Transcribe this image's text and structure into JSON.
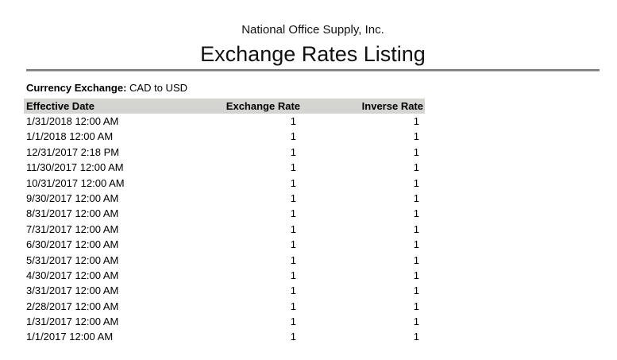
{
  "report": {
    "company": "National Office Supply, Inc.",
    "title": "Exchange Rates Listing",
    "filter": {
      "label": "Currency Exchange:",
      "value": "CAD to USD"
    },
    "table": {
      "columns": [
        "Effective Date",
        "Exchange Rate",
        "Inverse Rate"
      ],
      "rows": [
        [
          "1/31/2018 12:00 AM",
          "1",
          "1"
        ],
        [
          "1/1/2018 12:00 AM",
          "1",
          "1"
        ],
        [
          "12/31/2017 2:18 PM",
          "1",
          "1"
        ],
        [
          "11/30/2017 12:00 AM",
          "1",
          "1"
        ],
        [
          "10/31/2017 12:00 AM",
          "1",
          "1"
        ],
        [
          "9/30/2017 12:00 AM",
          "1",
          "1"
        ],
        [
          "8/31/2017 12:00 AM",
          "1",
          "1"
        ],
        [
          "7/31/2017 12:00 AM",
          "1",
          "1"
        ],
        [
          "6/30/2017 12:00 AM",
          "1",
          "1"
        ],
        [
          "5/31/2017 12:00 AM",
          "1",
          "1"
        ],
        [
          "4/30/2017 12:00 AM",
          "1",
          "1"
        ],
        [
          "3/31/2017 12:00 AM",
          "1",
          "1"
        ],
        [
          "2/28/2017 12:00 AM",
          "1",
          "1"
        ],
        [
          "1/31/2017 12:00 AM",
          "1",
          "1"
        ],
        [
          "1/1/2017 12:00 AM",
          "1",
          "1"
        ]
      ]
    },
    "colors": {
      "header_bg": "#d4d4d1",
      "rule_thick": "#7d7d7d",
      "rule_thin": "#aaaaaa",
      "text": "#000000"
    }
  }
}
